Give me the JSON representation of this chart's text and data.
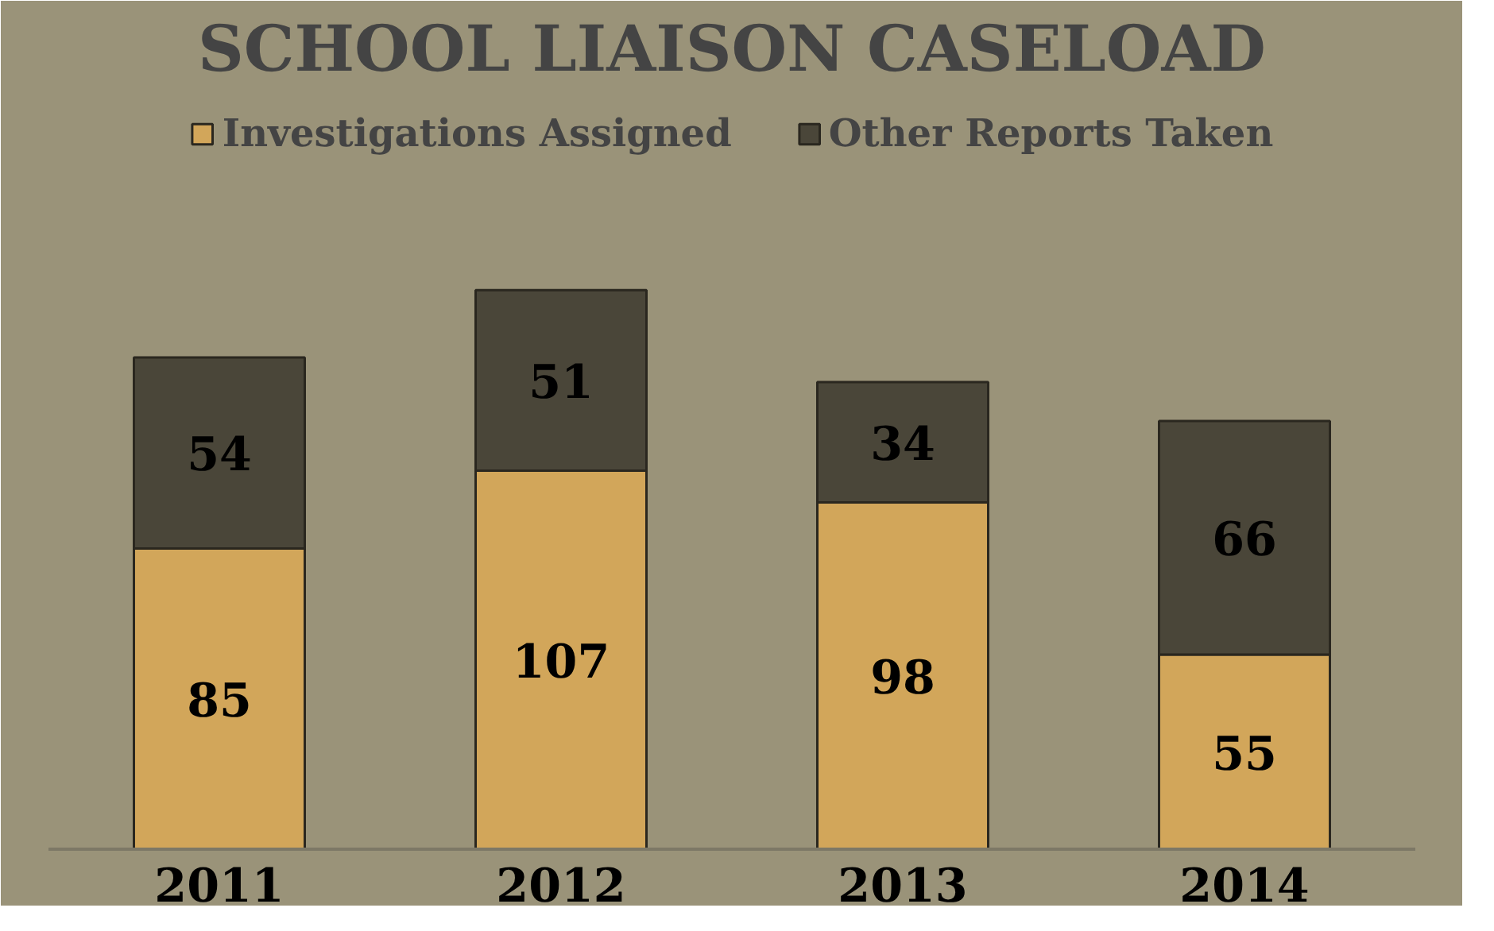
{
  "chart_data": {
    "type": "bar",
    "title": "SCHOOL LIAISON CASELOAD",
    "categories": [
      "2011",
      "2012",
      "2013",
      "2014"
    ],
    "stacked": true,
    "data_labels": true,
    "legend": "top",
    "grid": false,
    "series": [
      {
        "name": "Investigations Assigned",
        "color": "#d2a65a",
        "values": [
          85,
          107,
          98,
          55
        ]
      },
      {
        "name": "Other Reports Taken",
        "color": "#4a4639",
        "values": [
          54,
          51,
          34,
          66
        ]
      }
    ]
  }
}
